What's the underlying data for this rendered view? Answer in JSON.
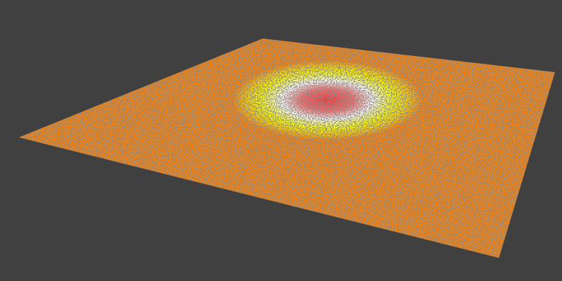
{
  "viewport": {
    "background_color": "#404040"
  },
  "point_cloud_plane": {
    "base_color": "#ff8000",
    "gradient_stops": [
      "#ff2a2a",
      "#ffffff",
      "#ffff00",
      "#ff8000"
    ]
  }
}
